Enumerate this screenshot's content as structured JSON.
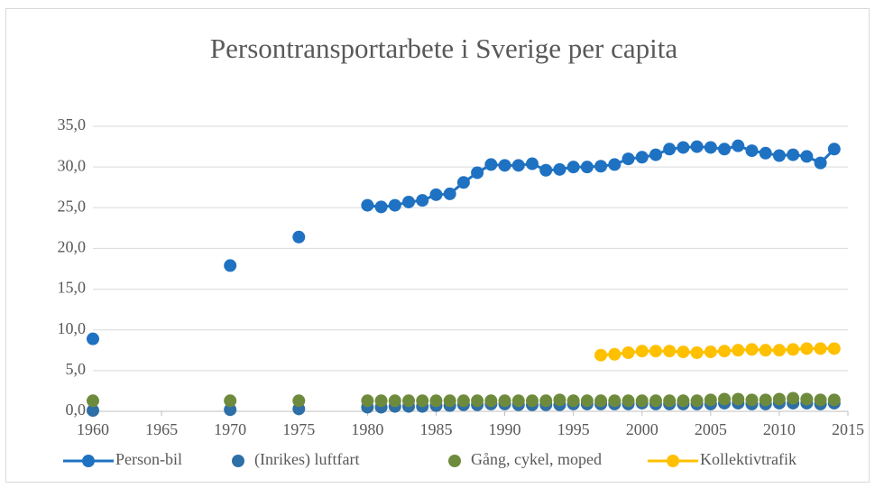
{
  "chart_data": {
    "type": "line",
    "title": "Persontransportarbete i Sverige per capita",
    "x": [
      1960,
      1961,
      1962,
      1963,
      1964,
      1965,
      1966,
      1967,
      1968,
      1969,
      1970,
      1971,
      1972,
      1973,
      1974,
      1975,
      1976,
      1977,
      1978,
      1979,
      1980,
      1981,
      1982,
      1983,
      1984,
      1985,
      1986,
      1987,
      1988,
      1989,
      1990,
      1991,
      1992,
      1993,
      1994,
      1995,
      1996,
      1997,
      1998,
      1999,
      2000,
      2001,
      2002,
      2003,
      2004,
      2005,
      2006,
      2007,
      2008,
      2009,
      2010,
      2011,
      2012,
      2013,
      2014
    ],
    "xlim": [
      1960,
      2015
    ],
    "xticks": [
      1960,
      1965,
      1970,
      1975,
      1980,
      1985,
      1990,
      1995,
      2000,
      2005,
      2010,
      2015
    ],
    "ylim": [
      0,
      35
    ],
    "yticks": [
      {
        "value": 0,
        "label": "0,0"
      },
      {
        "value": 5,
        "label": "5,0"
      },
      {
        "value": 10,
        "label": "10,0"
      },
      {
        "value": 15,
        "label": "15,0"
      },
      {
        "value": 20,
        "label": "20,0"
      },
      {
        "value": 25,
        "label": "25,0"
      },
      {
        "value": 30,
        "label": "30,0"
      },
      {
        "value": 35,
        "label": "35,0"
      }
    ],
    "grid": true,
    "legend": "bottom",
    "series": [
      {
        "name": "Person-bil",
        "color": "#1f72c2",
        "show_line": true,
        "values": [
          8.9,
          null,
          null,
          null,
          null,
          null,
          null,
          null,
          null,
          null,
          17.9,
          null,
          null,
          null,
          null,
          21.4,
          null,
          null,
          null,
          null,
          25.3,
          25.1,
          25.3,
          25.7,
          25.9,
          26.6,
          26.7,
          28.1,
          29.3,
          30.3,
          30.2,
          30.2,
          30.4,
          29.6,
          29.7,
          30.0,
          30.0,
          30.1,
          30.3,
          31.0,
          31.2,
          31.5,
          32.2,
          32.4,
          32.5,
          32.4,
          32.2,
          32.6,
          32.0,
          31.7,
          31.4,
          31.5,
          31.3,
          30.5,
          32.2
        ]
      },
      {
        "name": "(Inrikes) luftfart",
        "color": "#2e6fa7",
        "show_line": false,
        "values": [
          0.1,
          null,
          null,
          null,
          null,
          null,
          null,
          null,
          null,
          null,
          0.2,
          null,
          null,
          null,
          null,
          0.3,
          null,
          null,
          null,
          null,
          0.5,
          0.5,
          0.6,
          0.6,
          0.6,
          0.7,
          0.7,
          0.8,
          0.8,
          0.9,
          0.9,
          0.8,
          0.8,
          0.8,
          0.8,
          0.9,
          0.9,
          0.9,
          0.9,
          0.9,
          1.0,
          0.9,
          0.9,
          0.9,
          0.9,
          0.9,
          1.0,
          1.0,
          0.9,
          0.9,
          1.0,
          1.0,
          1.0,
          0.9,
          1.0
        ]
      },
      {
        "name": "Gång, cykel, moped",
        "color": "#6e8b3d",
        "show_line": false,
        "values": [
          1.3,
          null,
          null,
          null,
          null,
          null,
          null,
          null,
          null,
          null,
          1.3,
          null,
          null,
          null,
          null,
          1.3,
          null,
          null,
          null,
          null,
          1.3,
          1.3,
          1.3,
          1.3,
          1.3,
          1.3,
          1.3,
          1.3,
          1.3,
          1.3,
          1.3,
          1.3,
          1.3,
          1.3,
          1.4,
          1.3,
          1.3,
          1.3,
          1.3,
          1.3,
          1.3,
          1.3,
          1.3,
          1.3,
          1.3,
          1.4,
          1.5,
          1.5,
          1.4,
          1.4,
          1.5,
          1.6,
          1.5,
          1.4,
          1.4
        ]
      },
      {
        "name": "Kollektivtrafik",
        "color": "#ffc000",
        "show_line": true,
        "values": [
          null,
          null,
          null,
          null,
          null,
          null,
          null,
          null,
          null,
          null,
          null,
          null,
          null,
          null,
          null,
          null,
          null,
          null,
          null,
          null,
          null,
          null,
          null,
          null,
          null,
          null,
          null,
          null,
          null,
          null,
          null,
          null,
          null,
          null,
          null,
          null,
          null,
          6.9,
          7.0,
          7.2,
          7.4,
          7.4,
          7.4,
          7.3,
          7.2,
          7.3,
          7.4,
          7.5,
          7.6,
          7.5,
          7.5,
          7.6,
          7.7,
          7.7,
          7.7
        ]
      }
    ]
  }
}
